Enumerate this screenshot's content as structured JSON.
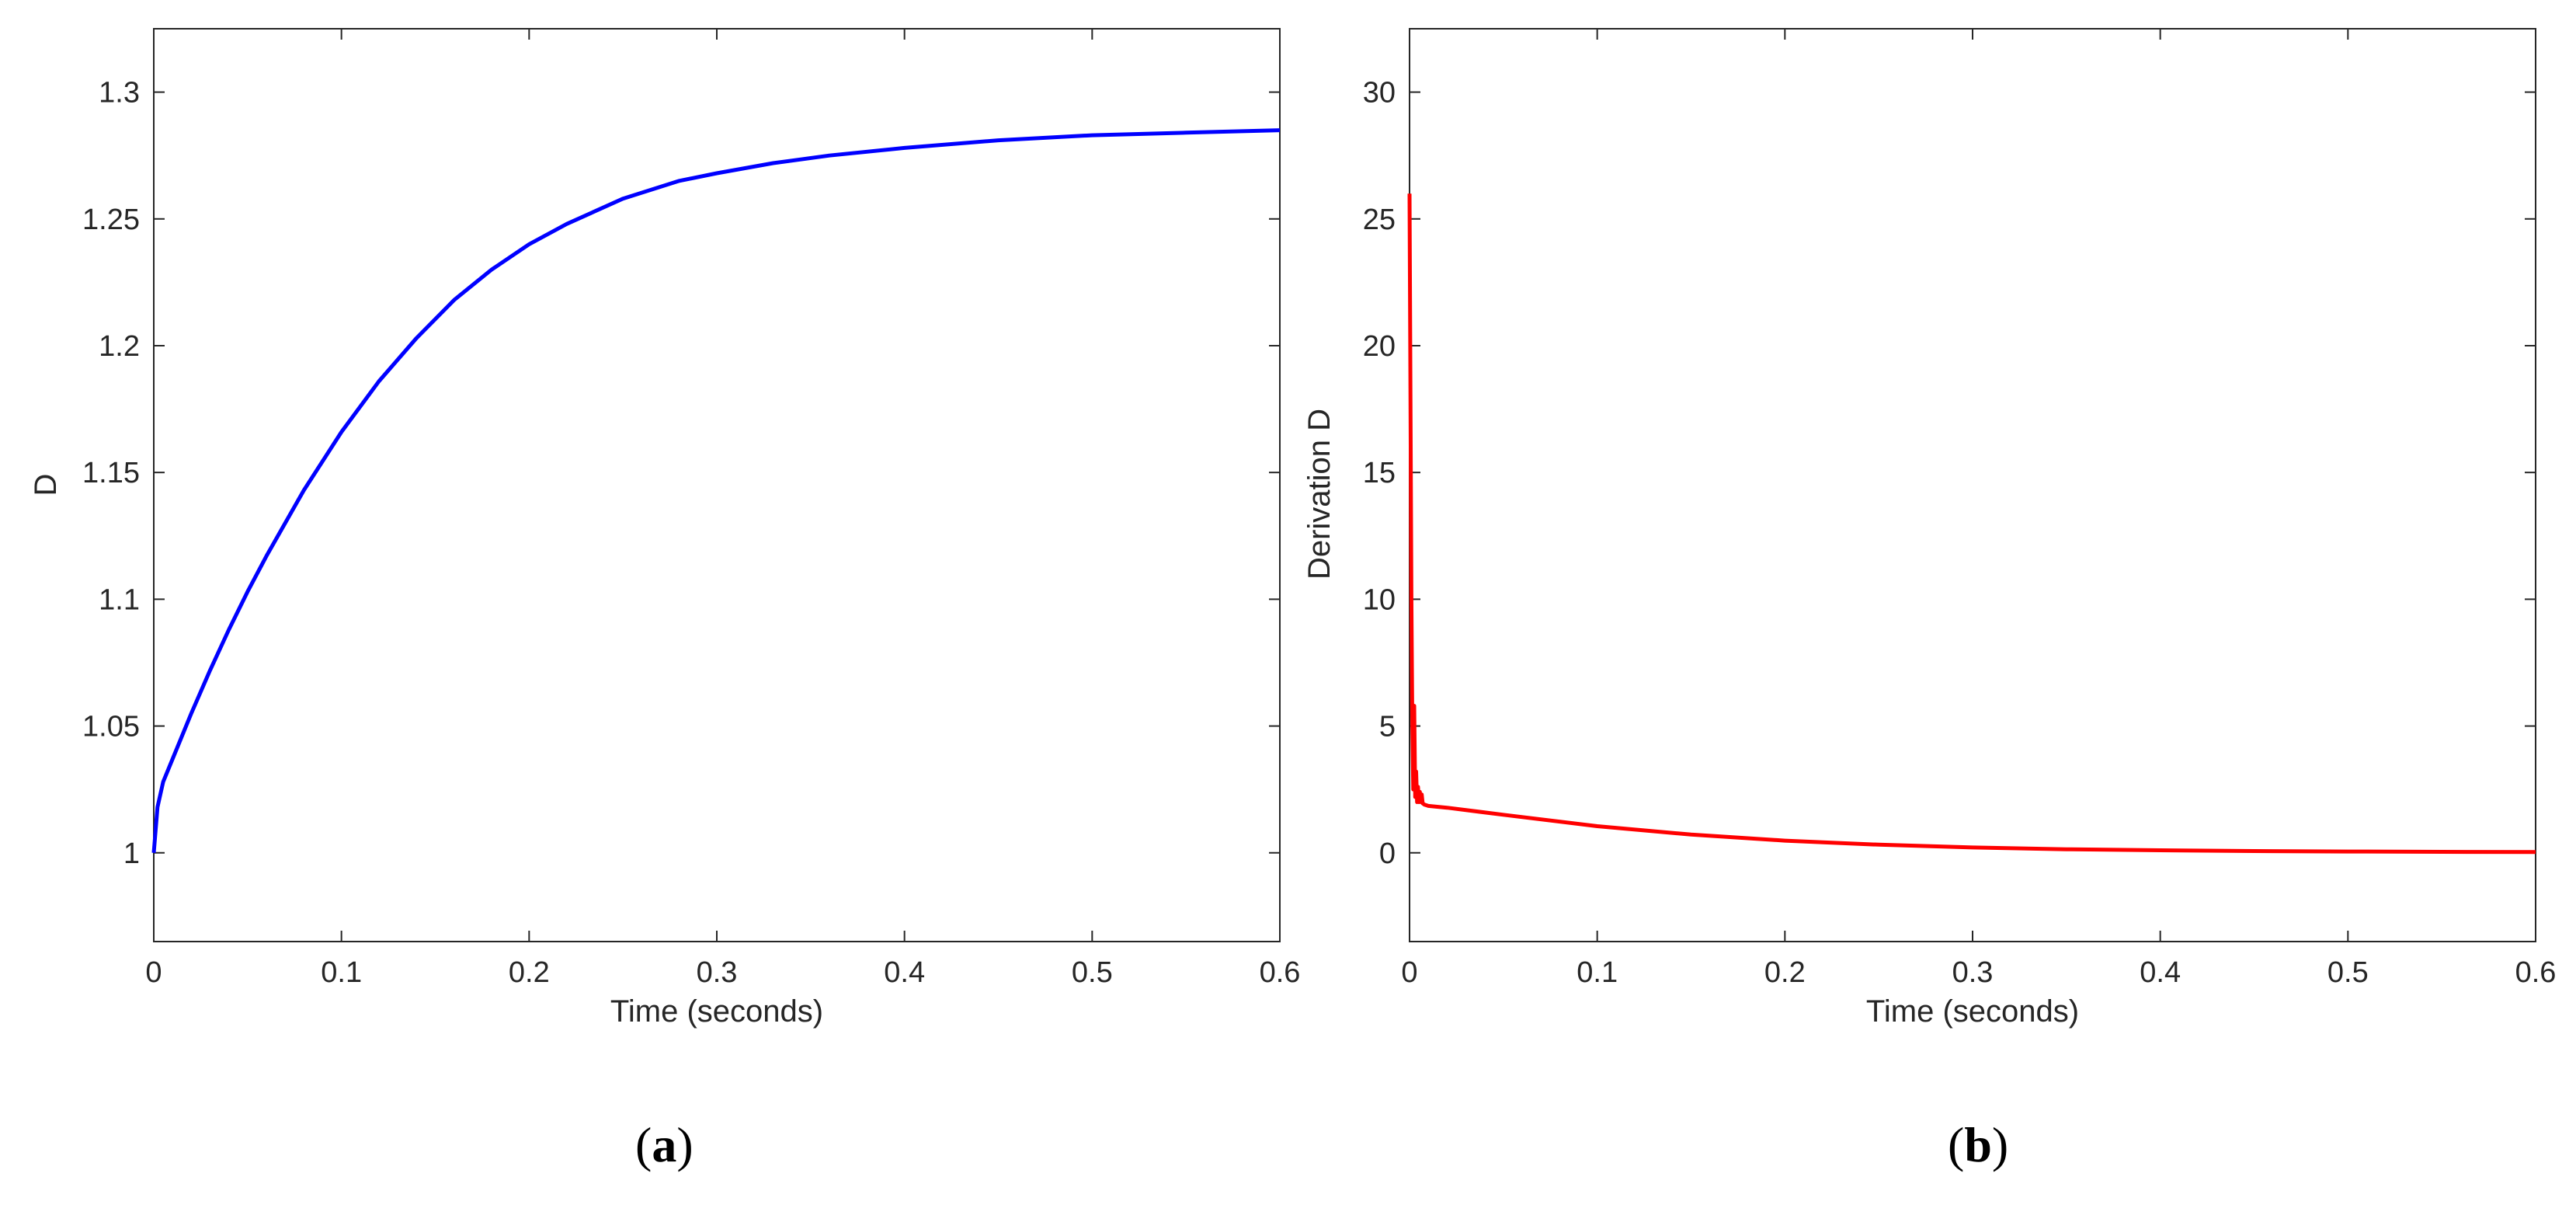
{
  "chart_data": [
    {
      "type": "line",
      "panel_label": "a",
      "xlabel": "Time (seconds)",
      "ylabel": "D",
      "xlim": [
        0,
        0.6
      ],
      "ylim": [
        0.965,
        1.325
      ],
      "xticks": [
        0,
        0.1,
        0.2,
        0.3,
        0.4,
        0.5,
        0.6
      ],
      "xtick_labels": [
        "0",
        "0.1",
        "0.2",
        "0.3",
        "0.4",
        "0.5",
        "0.6"
      ],
      "yticks": [
        1,
        1.05,
        1.1,
        1.15,
        1.2,
        1.25,
        1.3
      ],
      "ytick_labels": [
        "1",
        "1.05",
        "1.1",
        "1.15",
        "1.2",
        "1.25",
        "1.3"
      ],
      "grid": false,
      "series": [
        {
          "color": "#0000ff",
          "x": [
            0,
            0.002,
            0.005,
            0.01,
            0.02,
            0.03,
            0.04,
            0.05,
            0.06,
            0.08,
            0.1,
            0.12,
            0.14,
            0.16,
            0.18,
            0.2,
            0.22,
            0.25,
            0.28,
            0.3,
            0.33,
            0.36,
            0.4,
            0.45,
            0.5,
            0.55,
            0.6
          ],
          "y": [
            1.0,
            1.018,
            1.028,
            1.037,
            1.055,
            1.072,
            1.088,
            1.103,
            1.117,
            1.143,
            1.166,
            1.186,
            1.203,
            1.218,
            1.23,
            1.24,
            1.248,
            1.258,
            1.265,
            1.268,
            1.272,
            1.275,
            1.278,
            1.281,
            1.283,
            1.284,
            1.285
          ]
        }
      ]
    },
    {
      "type": "line",
      "panel_label": "b",
      "xlabel": "Time (seconds)",
      "ylabel": "Derivation D",
      "xlim": [
        0,
        0.6
      ],
      "ylim": [
        -3.5,
        32.5
      ],
      "xticks": [
        0,
        0.1,
        0.2,
        0.3,
        0.4,
        0.5,
        0.6
      ],
      "xtick_labels": [
        "0",
        "0.1",
        "0.2",
        "0.3",
        "0.4",
        "0.5",
        "0.6"
      ],
      "yticks": [
        0,
        5,
        10,
        15,
        20,
        25,
        30
      ],
      "ytick_labels": [
        "0",
        "5",
        "10",
        "15",
        "20",
        "25",
        "30"
      ],
      "grid": false,
      "series": [
        {
          "color": "#ff0000",
          "x": [
            0,
            0.0005,
            0.001,
            0.0015,
            0.002,
            0.0025,
            0.003,
            0.0035,
            0.004,
            0.0045,
            0.005,
            0.0055,
            0.006,
            0.0065,
            0.007,
            0.008,
            0.01,
            0.02,
            0.05,
            0.1,
            0.15,
            0.2,
            0.25,
            0.3,
            0.35,
            0.4,
            0.45,
            0.5,
            0.55,
            0.6
          ],
          "y": [
            26,
            18,
            10,
            5,
            2.5,
            5.8,
            2.2,
            3.2,
            2.0,
            2.6,
            2.0,
            2.4,
            2.0,
            2.3,
            1.95,
            1.9,
            1.85,
            1.78,
            1.5,
            1.05,
            0.72,
            0.48,
            0.32,
            0.21,
            0.14,
            0.1,
            0.07,
            0.05,
            0.04,
            0.03
          ]
        }
      ]
    }
  ]
}
